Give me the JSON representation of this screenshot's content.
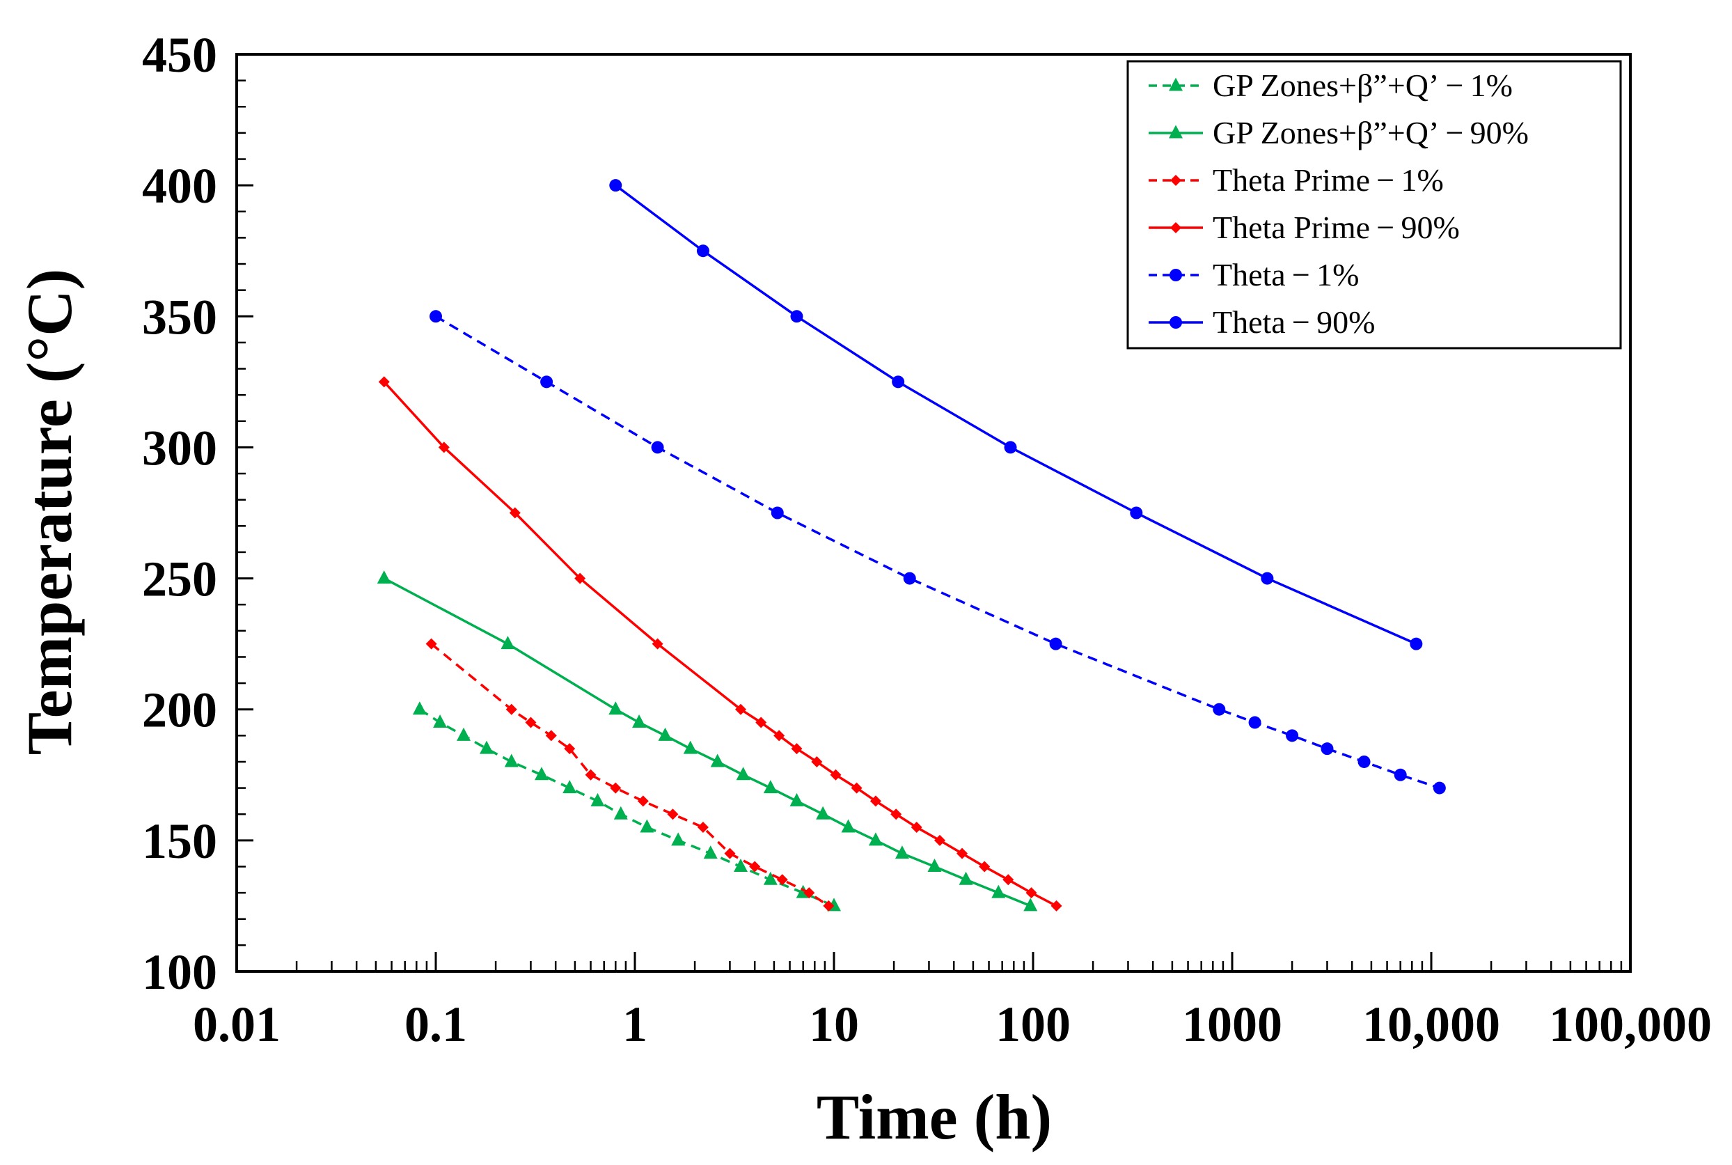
{
  "chart_data": {
    "type": "line",
    "title": "",
    "xlabel": "Time (h)",
    "ylabel": "Temperature (°C)",
    "xscale": "log",
    "xlim": [
      0.01,
      100000
    ],
    "ylim": [
      100,
      450
    ],
    "x_ticks": [
      0.01,
      0.1,
      1,
      10,
      100,
      1000,
      10000,
      100000
    ],
    "x_tick_labels": [
      "0.01",
      "0.1",
      "1",
      "10",
      "100",
      "1000",
      "10,000",
      "100,000"
    ],
    "y_ticks": [
      100,
      150,
      200,
      250,
      300,
      350,
      400,
      450
    ],
    "y_tick_labels": [
      "100",
      "150",
      "200",
      "250",
      "300",
      "350",
      "400",
      "450"
    ],
    "grid": false,
    "legend_position": "top-right",
    "series": [
      {
        "name": "GP Zones+β”+Q’ − 1%",
        "color": "#00b050",
        "dash": "dashed",
        "marker": "triangle",
        "x": [
          0.083,
          0.105,
          0.138,
          0.18,
          0.24,
          0.34,
          0.47,
          0.65,
          0.85,
          1.15,
          1.65,
          2.4,
          3.4,
          4.8,
          7.0,
          10.0
        ],
        "y": [
          200,
          195,
          190,
          185,
          180,
          175,
          170,
          165,
          160,
          155,
          150,
          145,
          140,
          135,
          130,
          125
        ]
      },
      {
        "name": "GP Zones+β”+Q’ − 90%",
        "color": "#00b050",
        "dash": "solid",
        "marker": "triangle",
        "x": [
          0.055,
          0.23,
          0.8,
          1.05,
          1.42,
          1.9,
          2.6,
          3.5,
          4.8,
          6.5,
          8.8,
          11.8,
          16.2,
          22.0,
          32.0,
          46.0,
          67.0,
          97.0
        ],
        "y": [
          250,
          225,
          200,
          195,
          190,
          185,
          180,
          175,
          170,
          165,
          160,
          155,
          150,
          145,
          140,
          135,
          130,
          125
        ]
      },
      {
        "name": "Theta Prime − 1%",
        "color": "#ff0000",
        "dash": "dashed",
        "marker": "diamond",
        "x": [
          0.095,
          0.24,
          0.3,
          0.38,
          0.47,
          0.6,
          0.8,
          1.1,
          1.55,
          2.2,
          3.0,
          4.0,
          5.5,
          7.5,
          9.4
        ],
        "y": [
          225,
          200,
          195,
          190,
          185,
          175,
          170,
          165,
          160,
          155,
          145,
          140,
          135,
          130,
          125
        ]
      },
      {
        "name": "Theta Prime − 90%",
        "color": "#ff0000",
        "dash": "solid",
        "marker": "diamond",
        "x": [
          0.055,
          0.11,
          0.25,
          0.53,
          1.3,
          3.4,
          4.3,
          5.3,
          6.5,
          8.2,
          10.2,
          13.0,
          16.2,
          20.5,
          26.0,
          34.0,
          44.0,
          57.0,
          75.0,
          98.0,
          131.0
        ],
        "y": [
          325,
          300,
          275,
          250,
          225,
          200,
          195,
          190,
          185,
          180,
          175,
          170,
          165,
          160,
          155,
          150,
          145,
          140,
          135,
          130,
          125
        ]
      },
      {
        "name": "Theta − 1%",
        "color": "#0000ff",
        "dash": "dashed",
        "marker": "circle",
        "x": [
          0.1,
          0.36,
          1.3,
          5.2,
          24.0,
          130.0,
          860.0,
          1300.0,
          2000.0,
          3000.0,
          4600.0,
          7000.0,
          11000.0
        ],
        "y": [
          350,
          325,
          300,
          275,
          250,
          225,
          200,
          195,
          190,
          185,
          180,
          175,
          170
        ]
      },
      {
        "name": "Theta − 90%",
        "color": "#0000ff",
        "dash": "solid",
        "marker": "circle",
        "x": [
          0.8,
          2.2,
          6.5,
          21.0,
          77.0,
          330.0,
          1500.0,
          8400.0
        ],
        "y": [
          400,
          375,
          350,
          325,
          300,
          275,
          250,
          225
        ]
      }
    ]
  }
}
